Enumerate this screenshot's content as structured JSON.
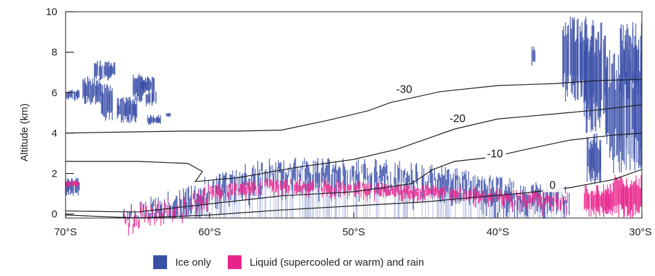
{
  "colors": {
    "ice": "#3a4fa8",
    "liquid": "#e8238c",
    "contour": "#1a1a1a",
    "axis": "#222222"
  },
  "chart_data": {
    "type": "curtain",
    "title": "",
    "xlabel": "",
    "ylabel": "Altitude (km)",
    "x_axis": {
      "range_lat": [
        -70,
        -30
      ],
      "ticks": [
        {
          "lat": -70,
          "label": "70°S"
        },
        {
          "lat": -60,
          "label": "60°S"
        },
        {
          "lat": -50,
          "label": "50°S"
        },
        {
          "lat": -40,
          "label": "40°S"
        },
        {
          "lat": -30,
          "label": "30°S"
        }
      ]
    },
    "y_axis": {
      "range": [
        -0.2,
        10
      ],
      "ticks": [
        0,
        2,
        4,
        6,
        8,
        10
      ]
    },
    "legend": {
      "placement": "bottom",
      "items": [
        {
          "key": "ice",
          "label": "Ice only"
        },
        {
          "key": "liquid",
          "label": "Liquid (supercooled or warm) and rain"
        }
      ]
    },
    "isotherms": [
      {
        "label": "-30",
        "label_at": [
          -46.5,
          6.0
        ],
        "points": [
          [
            -70,
            4.0
          ],
          [
            -66,
            4.05
          ],
          [
            -62,
            4.1
          ],
          [
            -58,
            4.1
          ],
          [
            -55,
            4.15
          ],
          [
            -52,
            4.6
          ],
          [
            -49,
            5.1
          ],
          [
            -47.5,
            5.5
          ],
          [
            -44,
            6.05
          ],
          [
            -40,
            6.35
          ],
          [
            -36,
            6.45
          ],
          [
            -33,
            6.6
          ],
          [
            -30,
            6.65
          ]
        ]
      },
      {
        "label": "-20",
        "label_at": [
          -42.8,
          4.55
        ],
        "points": [
          [
            -70,
            2.6
          ],
          [
            -65,
            2.6
          ],
          [
            -61.5,
            2.5
          ],
          [
            -60.5,
            2.1
          ],
          [
            -61,
            1.6
          ],
          [
            -58,
            1.8
          ],
          [
            -54,
            2.3
          ],
          [
            -50,
            2.7
          ],
          [
            -47,
            3.2
          ],
          [
            -45,
            3.7
          ],
          [
            -43,
            4.2
          ],
          [
            -40,
            4.7
          ],
          [
            -36,
            4.95
          ],
          [
            -33,
            5.15
          ],
          [
            -30,
            5.4
          ]
        ]
      },
      {
        "label": "-10",
        "label_at": [
          -40.2,
          2.8
        ],
        "points": [
          [
            -70,
            0.15
          ],
          [
            -65,
            0.1
          ],
          [
            -60,
            0.5
          ],
          [
            -55,
            0.9
          ],
          [
            -50,
            1.1
          ],
          [
            -46,
            1.5
          ],
          [
            -44.5,
            2.2
          ],
          [
            -43,
            2.6
          ],
          [
            -40.5,
            2.8
          ],
          [
            -38,
            3.2
          ],
          [
            -35,
            3.65
          ],
          [
            -32,
            3.9
          ],
          [
            -30,
            4.0
          ]
        ]
      },
      {
        "label": "0",
        "label_at": [
          -36.2,
          1.25
        ],
        "points": [
          [
            -70,
            -0.05
          ],
          [
            -65,
            -0.2
          ],
          [
            -60,
            -0.05
          ],
          [
            -55,
            0.2
          ],
          [
            -50,
            0.4
          ],
          [
            -45,
            0.6
          ],
          [
            -42,
            0.8
          ],
          [
            -38,
            1.05
          ],
          [
            -35,
            1.3
          ],
          [
            -32,
            1.7
          ],
          [
            -30,
            2.2
          ]
        ]
      }
    ],
    "ice_regions": [
      {
        "lat": [
          -70.0,
          -69.0
        ],
        "alt": [
          5.6,
          6.2
        ]
      },
      {
        "lat": [
          -68.8,
          -67.5
        ],
        "alt": [
          5.4,
          6.8
        ]
      },
      {
        "lat": [
          -68.0,
          -66.5
        ],
        "alt": [
          6.6,
          7.6
        ]
      },
      {
        "lat": [
          -67.5,
          -66.7
        ],
        "alt": [
          4.6,
          6.5
        ]
      },
      {
        "lat": [
          -66.4,
          -65.0
        ],
        "alt": [
          4.5,
          5.8
        ]
      },
      {
        "lat": [
          -65.3,
          -64.5
        ],
        "alt": [
          5.5,
          7.0
        ]
      },
      {
        "lat": [
          -64.8,
          -63.8
        ],
        "alt": [
          6.0,
          6.8
        ]
      },
      {
        "lat": [
          -64.4,
          -63.7
        ],
        "alt": [
          5.3,
          6.2
        ]
      },
      {
        "lat": [
          -64.3,
          -63.4
        ],
        "alt": [
          4.4,
          4.9
        ]
      },
      {
        "lat": [
          -63.0,
          -62.7
        ],
        "alt": [
          4.8,
          5.0
        ]
      },
      {
        "lat": [
          -70.0,
          -69.0
        ],
        "alt": [
          0.9,
          1.8
        ]
      },
      {
        "lat": [
          -37.7,
          -37.4
        ],
        "alt": [
          7.3,
          8.3
        ]
      },
      {
        "lat": [
          -35.5,
          -33.8
        ],
        "alt": [
          5.5,
          9.8
        ]
      },
      {
        "lat": [
          -34.0,
          -32.5
        ],
        "alt": [
          4.0,
          9.7
        ]
      },
      {
        "lat": [
          -33.8,
          -32.8
        ],
        "alt": [
          1.5,
          4.0
        ]
      },
      {
        "lat": [
          -32.5,
          -30.0
        ],
        "alt": [
          2.0,
          8.4
        ]
      },
      {
        "lat": [
          -31.5,
          -30.0
        ],
        "alt": [
          5.5,
          9.5
        ]
      }
    ],
    "liquid_regions": [
      {
        "lat": [
          -70.0,
          -69.0
        ],
        "alt": [
          1.3,
          1.7
        ]
      },
      {
        "lat": [
          -34.0,
          -32.0
        ],
        "alt": [
          -0.2,
          1.5
        ]
      },
      {
        "lat": [
          -32.0,
          -30.0
        ],
        "alt": [
          -0.2,
          2.0
        ]
      }
    ],
    "low_cloud_profile": [
      {
        "lat": -66,
        "base": -0.2,
        "top": 0.1,
        "liq": 0.15
      },
      {
        "lat": -64,
        "base": -0.2,
        "top": 0.5,
        "liq": 0.35
      },
      {
        "lat": -62,
        "base": -0.2,
        "top": 0.8,
        "liq": 0.5
      },
      {
        "lat": -60,
        "base": -0.2,
        "top": 1.5,
        "liq": 0.7
      },
      {
        "lat": -58,
        "base": -0.2,
        "top": 2.0,
        "liq": 0.8
      },
      {
        "lat": -56,
        "base": -0.2,
        "top": 2.3,
        "liq": 0.9
      },
      {
        "lat": -54,
        "base": -0.2,
        "top": 2.4,
        "liq": 0.9
      },
      {
        "lat": -52,
        "base": -0.2,
        "top": 2.4,
        "liq": 0.85
      },
      {
        "lat": -50,
        "base": -0.2,
        "top": 2.3,
        "liq": 0.8
      },
      {
        "lat": -48,
        "base": -0.2,
        "top": 2.3,
        "liq": 0.75
      },
      {
        "lat": -46,
        "base": -0.2,
        "top": 2.1,
        "liq": 0.7
      },
      {
        "lat": -44,
        "base": -0.2,
        "top": 2.0,
        "liq": 0.65
      },
      {
        "lat": -42,
        "base": -0.2,
        "top": 1.7,
        "liq": 0.6
      },
      {
        "lat": -40,
        "base": -0.2,
        "top": 1.4,
        "liq": 0.5
      },
      {
        "lat": -38,
        "base": -0.2,
        "top": 1.3,
        "liq": 0.45
      },
      {
        "lat": -36,
        "base": -0.2,
        "top": 1.2,
        "liq": 0.4
      },
      {
        "lat": -35,
        "base": -0.2,
        "top": 1.0,
        "liq": 0.35
      }
    ]
  }
}
